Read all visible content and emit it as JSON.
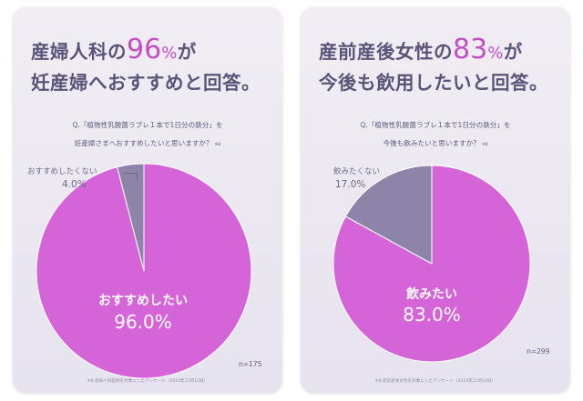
{
  "chart_data": [
    {
      "type": "pie",
      "headline": {
        "line1_prefix": "産婦人科の",
        "line1_number": "96",
        "line1_unit": "%",
        "line1_suffix": "が",
        "line2": "妊産婦へおすすめと回答。"
      },
      "question": {
        "line1": "Q.「植物性乳酸菌ラブレ１本で1日分の鉄分」を",
        "line2": "妊産婦さまへおすすめしたいと思いますか？",
        "note": "※8"
      },
      "slices": [
        {
          "label": "おすすめしたい",
          "value": 96.0,
          "value_label": "96.0%",
          "color": "#d664d9"
        },
        {
          "label": "おすすめしたくない",
          "value": 4.0,
          "value_label": "4.0%",
          "color": "#8e83a8"
        }
      ],
      "sample_size": "n=175",
      "footnote": "※8 産婦人科医師を対象にしたアンケート（2024年11月12日）"
    },
    {
      "type": "pie",
      "headline": {
        "line1_prefix": "産前産後女性の",
        "line1_number": "83",
        "line1_unit": "%",
        "line1_suffix": "が",
        "line2": "今後も飲用したいと回答。"
      },
      "question": {
        "line1": "Q.「植物性乳酸菌ラブレ１本で1日分の鉄分」を",
        "line2": "今後も飲みたいと思いますか？",
        "note": "※8"
      },
      "slices": [
        {
          "label": "飲みたい",
          "value": 83.0,
          "value_label": "83.0%",
          "color": "#d664d9"
        },
        {
          "label": "飲みたくない",
          "value": 17.0,
          "value_label": "17.0%",
          "color": "#8e83a8"
        }
      ],
      "sample_size": "n=299",
      "footnote": "※8 産前産後女性を対象にしたアンケート（2024年11月12日）"
    }
  ]
}
